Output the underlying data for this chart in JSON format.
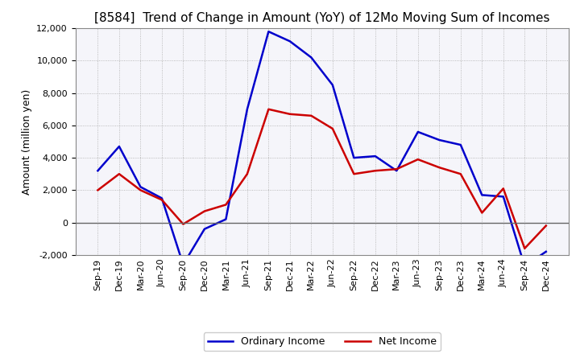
{
  "title": "[8584]  Trend of Change in Amount (YoY) of 12Mo Moving Sum of Incomes",
  "ylabel": "Amount (million yen)",
  "x_labels": [
    "Sep-19",
    "Dec-19",
    "Mar-20",
    "Jun-20",
    "Sep-20",
    "Dec-20",
    "Mar-21",
    "Jun-21",
    "Sep-21",
    "Dec-21",
    "Mar-22",
    "Jun-22",
    "Sep-22",
    "Dec-22",
    "Mar-23",
    "Jun-23",
    "Sep-23",
    "Dec-23",
    "Mar-24",
    "Jun-24",
    "Sep-24",
    "Dec-24"
  ],
  "ordinary_income": [
    3200,
    4700,
    2200,
    1500,
    -2600,
    -400,
    200,
    7000,
    11800,
    11200,
    10200,
    8500,
    4000,
    4100,
    3200,
    5600,
    5100,
    4800,
    1700,
    1600,
    -2700,
    -1800
  ],
  "net_income": [
    2000,
    3000,
    2000,
    1400,
    -100,
    700,
    1100,
    3000,
    7000,
    6700,
    6600,
    5800,
    3000,
    3200,
    3300,
    3900,
    3400,
    3000,
    600,
    2100,
    -1600,
    -200
  ],
  "ordinary_color": "#0000cc",
  "net_color": "#cc0000",
  "ylim": [
    -2000,
    12000
  ],
  "yticks": [
    -2000,
    0,
    2000,
    4000,
    6000,
    8000,
    10000,
    12000
  ],
  "grid_color": "#aaaaaa",
  "bg_color": "#f5f5fa",
  "legend_labels": [
    "Ordinary Income",
    "Net Income"
  ],
  "title_fontsize": 11,
  "ylabel_fontsize": 9,
  "tick_fontsize": 8
}
